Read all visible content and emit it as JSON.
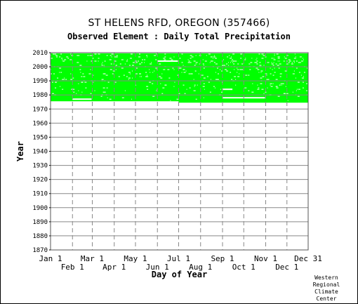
{
  "chart_data": {
    "type": "heatmap",
    "title": "ST HELENS RFD, OREGON   (357466)",
    "subtitle": "Observed Element : Daily Total Precipitation",
    "xlabel": "Day of Year",
    "ylabel": "Year",
    "ylim": [
      1870,
      2010
    ],
    "y_ticks": [
      1870,
      1880,
      1890,
      1900,
      1910,
      1920,
      1930,
      1940,
      1950,
      1960,
      1970,
      1980,
      1990,
      2000,
      2010
    ],
    "x_ticks_top_row": [
      "Jan 1",
      "Mar 1",
      "May 1",
      "Jul 1",
      "Sep 1",
      "Nov 1",
      "Dec 31"
    ],
    "x_ticks_bottom_row": [
      "Feb 1",
      "Apr 1",
      "Jun 1",
      "Aug 1",
      "Oct 1",
      "Dec 1"
    ],
    "x_tick_days": [
      1,
      32,
      60,
      91,
      121,
      152,
      182,
      213,
      244,
      274,
      305,
      335,
      365
    ],
    "grid": true,
    "data_color": "#00ff00",
    "observed_periods": [
      {
        "start_day": 1,
        "end_day": 181,
        "start_year": 1976,
        "end_year": 2009
      },
      {
        "start_day": 182,
        "end_day": 365,
        "start_year": 1975,
        "end_year": 2009
      }
    ],
    "missing_segments": [
      {
        "start_day": 32,
        "end_day": 59,
        "year": 1977
      },
      {
        "start_day": 152,
        "end_day": 181,
        "year": 2004
      },
      {
        "start_day": 244,
        "end_day": 258,
        "year": 1984
      },
      {
        "start_day": 244,
        "end_day": 304,
        "year": 1978
      }
    ]
  },
  "credit": [
    "Western",
    "Regional",
    "Climate",
    "Center"
  ]
}
